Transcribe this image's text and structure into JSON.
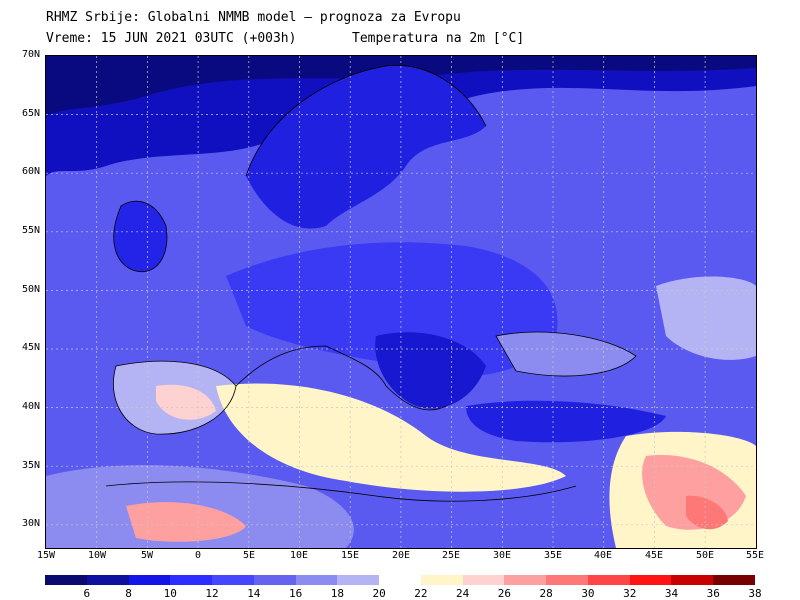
{
  "header": {
    "line1": "RHMZ Srbije: Globalni NMMB model – prognoza za Evropu",
    "line2_left": "Vreme: 15 JUN 2021 03UTC (+003h)",
    "line2_right": "Temperatura na 2m [°C]"
  },
  "map": {
    "lat_labels": [
      "70N",
      "65N",
      "60N",
      "55N",
      "50N",
      "45N",
      "40N",
      "35N",
      "30N"
    ],
    "lon_labels": [
      "15W",
      "10W",
      "5W",
      "0",
      "5E",
      "10E",
      "15E",
      "20E",
      "25E",
      "30E",
      "35E",
      "40E",
      "45E",
      "50E",
      "55E"
    ]
  },
  "legend": {
    "colors": [
      "#0a0a6e",
      "#0f0fa0",
      "#1414e6",
      "#2d2dff",
      "#4646ff",
      "#6464f0",
      "#8c8cf0",
      "#b4b4f5",
      "#ffffff",
      "#fff5c8",
      "#ffd2d2",
      "#ffa0a0",
      "#ff7878",
      "#ff4646",
      "#ff1414",
      "#c80000",
      "#780000"
    ],
    "ticks": [
      "6",
      "8",
      "10",
      "12",
      "14",
      "16",
      "18",
      "20",
      "22",
      "24",
      "26",
      "28",
      "30",
      "32",
      "34",
      "36",
      "38"
    ]
  }
}
